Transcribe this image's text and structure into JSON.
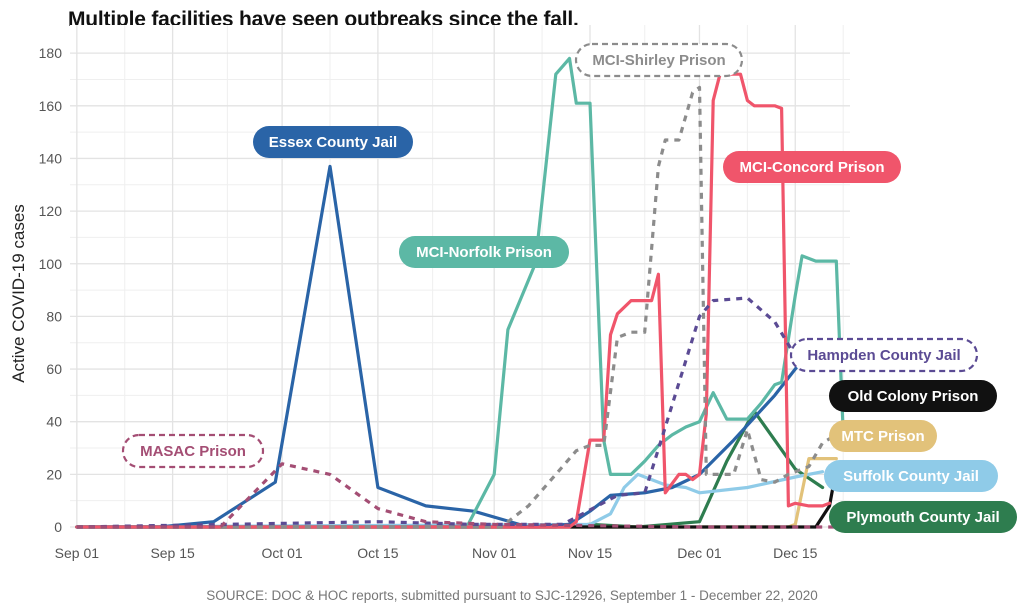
{
  "chart_data": {
    "type": "line",
    "title": "Multiple facilities have seen outbreaks since the fall.",
    "ylabel": "Active COVID-19 cases",
    "xlabel": "",
    "source": "SOURCE: DOC & HOC reports, submitted pursuant to SJC-12926, September 1 - December 22, 2020",
    "ylim": [
      0,
      185
    ],
    "xlim": [
      "2020-08-31",
      "2020-12-23"
    ],
    "grid": true,
    "legend": "direct labels next to series",
    "x_ticks": [
      {
        "date": "2020-09-01",
        "label": "Sep 01"
      },
      {
        "date": "2020-09-15",
        "label": "Sep 15"
      },
      {
        "date": "2020-10-01",
        "label": "Oct 01"
      },
      {
        "date": "2020-10-15",
        "label": "Oct 15"
      },
      {
        "date": "2020-11-01",
        "label": "Nov 01"
      },
      {
        "date": "2020-11-15",
        "label": "Nov 15"
      },
      {
        "date": "2020-12-01",
        "label": "Dec 01"
      },
      {
        "date": "2020-12-15",
        "label": "Dec 15"
      }
    ],
    "y_ticks": [
      0,
      20,
      40,
      60,
      80,
      100,
      120,
      140,
      160,
      180
    ],
    "series": [
      {
        "name": "Plymouth County Jail",
        "color": "#2e7d4f",
        "dash": false,
        "points": [
          [
            "2020-09-01",
            0
          ],
          [
            "2020-11-10",
            0
          ],
          [
            "2020-11-15",
            1
          ],
          [
            "2020-11-22",
            0
          ],
          [
            "2020-12-01",
            2
          ],
          [
            "2020-12-05",
            25
          ],
          [
            "2020-12-09",
            44
          ],
          [
            "2020-12-15",
            22
          ],
          [
            "2020-12-19",
            15
          ]
        ]
      },
      {
        "name": "Suffolk County Jail",
        "color": "#8fcbe8",
        "dash": false,
        "points": [
          [
            "2020-09-01",
            0
          ],
          [
            "2020-11-15",
            1
          ],
          [
            "2020-11-18",
            5
          ],
          [
            "2020-11-20",
            15
          ],
          [
            "2020-11-22",
            20
          ],
          [
            "2020-11-26",
            16
          ],
          [
            "2020-11-29",
            15
          ],
          [
            "2020-12-01",
            13
          ],
          [
            "2020-12-08",
            15
          ],
          [
            "2020-12-15",
            19
          ],
          [
            "2020-12-19",
            21
          ]
        ]
      },
      {
        "name": "MTC Prison",
        "color": "#e2c27a",
        "dash": false,
        "points": [
          [
            "2020-09-01",
            0
          ],
          [
            "2020-12-14",
            0
          ],
          [
            "2020-12-15",
            1
          ],
          [
            "2020-12-17",
            26
          ],
          [
            "2020-12-21",
            26
          ]
        ]
      },
      {
        "name": "Old Colony Prison",
        "color": "#111111",
        "dash": false,
        "points": [
          [
            "2020-09-01",
            0
          ],
          [
            "2020-12-18",
            0
          ],
          [
            "2020-12-20",
            8
          ],
          [
            "2020-12-21",
            22
          ]
        ]
      },
      {
        "name": "Essex County Jail",
        "color": "#2a64a7",
        "dash": false,
        "points": [
          [
            "2020-09-01",
            0
          ],
          [
            "2020-09-13",
            0
          ],
          [
            "2020-09-21",
            2
          ],
          [
            "2020-09-30",
            17
          ],
          [
            "2020-10-08",
            137
          ],
          [
            "2020-10-15",
            15
          ],
          [
            "2020-10-22",
            8
          ],
          [
            "2020-10-29",
            6
          ],
          [
            "2020-11-06",
            0
          ],
          [
            "2020-11-12",
            1
          ],
          [
            "2020-11-15",
            6
          ],
          [
            "2020-11-18",
            12
          ],
          [
            "2020-11-23",
            13
          ],
          [
            "2020-11-27",
            15
          ],
          [
            "2020-12-01",
            20
          ],
          [
            "2020-12-06",
            33
          ],
          [
            "2020-12-12",
            50
          ],
          [
            "2020-12-18",
            70
          ]
        ]
      },
      {
        "name": "MCI-Norfolk Prison",
        "color": "#5cb8a5",
        "dash": false,
        "points": [
          [
            "2020-09-01",
            0
          ],
          [
            "2020-10-28",
            0
          ],
          [
            "2020-11-01",
            20
          ],
          [
            "2020-11-03",
            75
          ],
          [
            "2020-11-07",
            100
          ],
          [
            "2020-11-10",
            172
          ],
          [
            "2020-11-12",
            178
          ],
          [
            "2020-11-13",
            161
          ],
          [
            "2020-11-15",
            161
          ],
          [
            "2020-11-17",
            33
          ],
          [
            "2020-11-18",
            20
          ],
          [
            "2020-11-21",
            20
          ],
          [
            "2020-11-23",
            25
          ],
          [
            "2020-11-25",
            31
          ],
          [
            "2020-11-27",
            35
          ],
          [
            "2020-11-29",
            38
          ],
          [
            "2020-12-01",
            40
          ],
          [
            "2020-12-03",
            51
          ],
          [
            "2020-12-05",
            41
          ],
          [
            "2020-12-08",
            41
          ],
          [
            "2020-12-10",
            47
          ],
          [
            "2020-12-12",
            54
          ],
          [
            "2020-12-13",
            55
          ],
          [
            "2020-12-15",
            88
          ],
          [
            "2020-12-16",
            103
          ],
          [
            "2020-12-18",
            101
          ],
          [
            "2020-12-21",
            101
          ],
          [
            "2020-12-22",
            36
          ]
        ]
      },
      {
        "name": "MCI-Concord Prison",
        "color": "#f0556b",
        "dash": false,
        "points": [
          [
            "2020-09-01",
            0
          ],
          [
            "2020-11-12",
            0
          ],
          [
            "2020-11-13",
            2
          ],
          [
            "2020-11-15",
            33
          ],
          [
            "2020-11-17",
            33
          ],
          [
            "2020-11-18",
            73
          ],
          [
            "2020-11-19",
            81
          ],
          [
            "2020-11-21",
            86
          ],
          [
            "2020-11-24",
            86
          ],
          [
            "2020-11-25",
            96
          ],
          [
            "2020-11-26",
            13
          ],
          [
            "2020-11-28",
            20
          ],
          [
            "2020-11-29",
            20
          ],
          [
            "2020-11-30",
            18
          ],
          [
            "2020-12-01",
            20
          ],
          [
            "2020-12-02",
            43
          ],
          [
            "2020-12-03",
            162
          ],
          [
            "2020-12-04",
            172
          ],
          [
            "2020-12-07",
            172
          ],
          [
            "2020-12-08",
            162
          ],
          [
            "2020-12-09",
            160
          ],
          [
            "2020-12-12",
            160
          ],
          [
            "2020-12-13",
            159
          ],
          [
            "2020-12-14",
            8
          ],
          [
            "2020-12-15",
            9
          ],
          [
            "2020-12-17",
            8
          ],
          [
            "2020-12-19",
            8
          ],
          [
            "2020-12-20",
            9
          ]
        ]
      },
      {
        "name": "MCI-Shirley Prison",
        "color": "#8c8c8c",
        "dash": true,
        "points": [
          [
            "2020-09-01",
            0
          ],
          [
            "2020-11-02",
            0
          ],
          [
            "2020-11-06",
            8
          ],
          [
            "2020-11-10",
            20
          ],
          [
            "2020-11-13",
            29
          ],
          [
            "2020-11-15",
            31
          ],
          [
            "2020-11-17",
            31
          ],
          [
            "2020-11-19",
            72
          ],
          [
            "2020-11-21",
            74
          ],
          [
            "2020-11-23",
            74
          ],
          [
            "2020-11-25",
            137
          ],
          [
            "2020-11-26",
            147
          ],
          [
            "2020-11-28",
            147
          ],
          [
            "2020-11-30",
            165
          ],
          [
            "2020-12-01",
            167
          ],
          [
            "2020-12-02",
            20
          ],
          [
            "2020-12-04",
            20
          ],
          [
            "2020-12-06",
            20
          ],
          [
            "2020-12-08",
            37
          ],
          [
            "2020-12-10",
            18
          ],
          [
            "2020-12-12",
            17
          ],
          [
            "2020-12-14",
            20
          ],
          [
            "2020-12-17",
            23
          ],
          [
            "2020-12-19",
            32
          ],
          [
            "2020-12-21",
            35
          ]
        ]
      },
      {
        "name": "Hampden County Jail",
        "color": "#5b4b94",
        "dash": true,
        "points": [
          [
            "2020-09-01",
            0
          ],
          [
            "2020-10-15",
            2
          ],
          [
            "2020-10-29",
            1
          ],
          [
            "2020-11-11",
            1
          ],
          [
            "2020-11-19",
            12
          ],
          [
            "2020-11-23",
            13
          ],
          [
            "2020-11-26",
            38
          ],
          [
            "2020-12-01",
            80
          ],
          [
            "2020-12-03",
            86
          ],
          [
            "2020-12-08",
            87
          ],
          [
            "2020-12-12",
            78
          ],
          [
            "2020-12-15",
            65
          ]
        ]
      },
      {
        "name": "MASAC Prison",
        "color": "#a44e74",
        "dash": true,
        "points": [
          [
            "2020-09-01",
            0
          ],
          [
            "2020-09-22",
            0
          ],
          [
            "2020-10-01",
            24
          ],
          [
            "2020-10-08",
            20
          ],
          [
            "2020-10-15",
            7
          ],
          [
            "2020-10-22",
            2
          ],
          [
            "2020-11-01",
            1
          ],
          [
            "2020-12-01",
            0
          ],
          [
            "2020-12-21",
            0
          ]
        ]
      }
    ],
    "annotations": [
      {
        "text": "Essex County Jail",
        "style": "filled",
        "color": "#2a64a7"
      },
      {
        "text": "MCI-Norfolk Prison",
        "style": "filled",
        "color": "#5cb8a5"
      },
      {
        "text": "MCI-Shirley Prison",
        "style": "dashed",
        "color": "#8c8c8c"
      },
      {
        "text": "MCI-Concord Prison",
        "style": "filled",
        "color": "#f0556b"
      },
      {
        "text": "Hampden County Jail",
        "style": "dashed",
        "color": "#5b4b94"
      },
      {
        "text": "MASAC Prison",
        "style": "dashed",
        "color": "#a44e74"
      },
      {
        "text": "Old Colony Prison",
        "style": "filled",
        "color": "#111111"
      },
      {
        "text": "MTC Prison",
        "style": "filled",
        "color": "#e2c27a"
      },
      {
        "text": "Suffolk County Jail",
        "style": "filled",
        "color": "#8fcbe8"
      },
      {
        "text": "Plymouth County Jail",
        "style": "filled",
        "color": "#2e7d4f"
      }
    ]
  }
}
